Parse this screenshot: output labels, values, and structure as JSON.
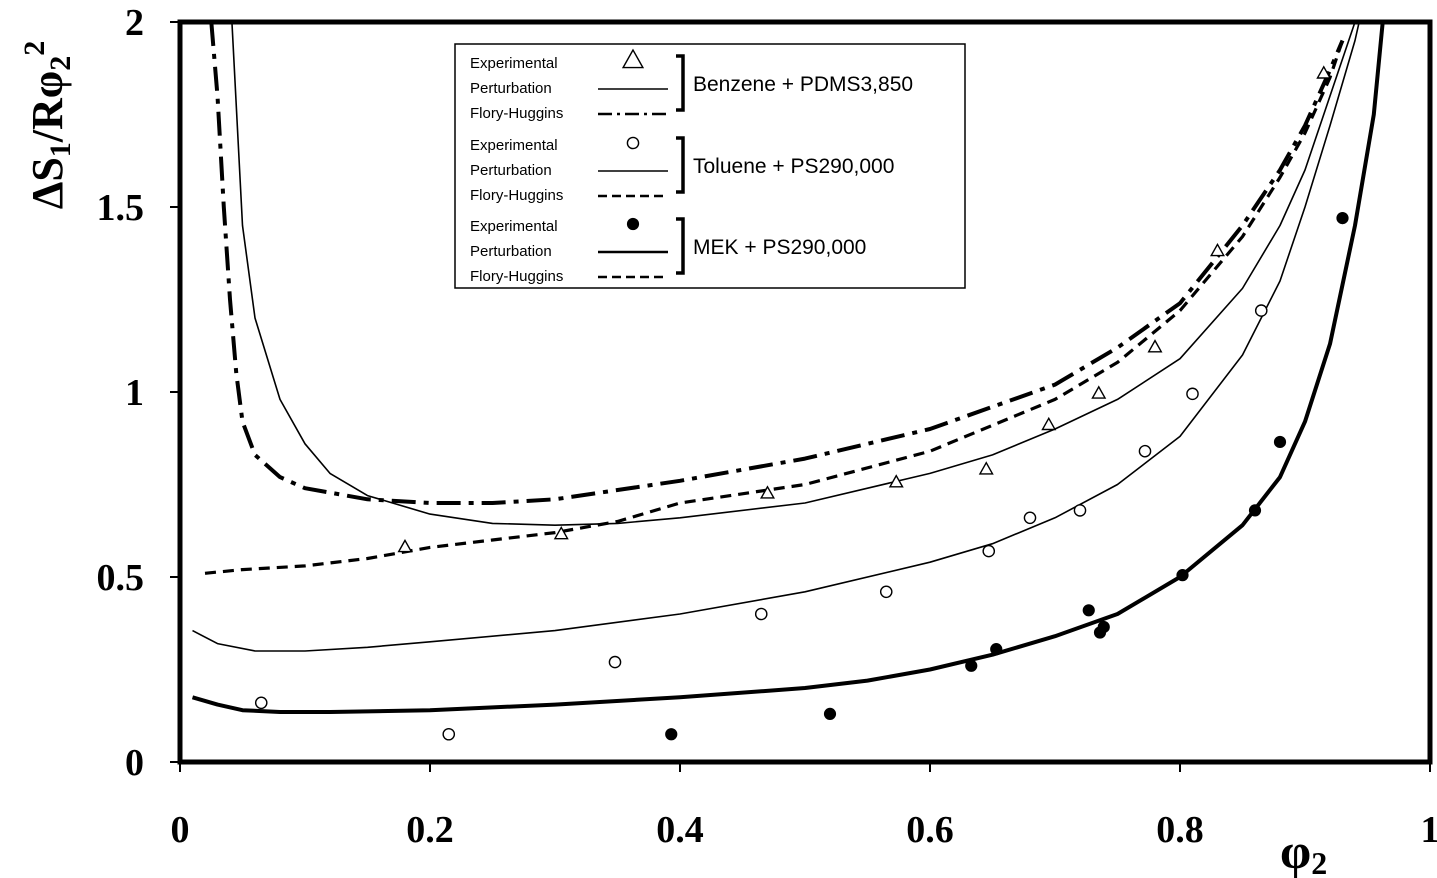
{
  "chart_data": {
    "type": "scatter",
    "ylabel": "ΔS1/Rφ2²",
    "ylabel_parts": {
      "delta": "Δ",
      "s": "S",
      "s_sub": "1",
      "slash": "/R",
      "phi": "φ",
      "phi_sub": "2",
      "phi_sup": "2"
    },
    "xlabel": "φ2",
    "xlabel_parts": {
      "phi": "φ",
      "sub": "2"
    },
    "xlim": [
      0,
      1
    ],
    "ylim": [
      0,
      2
    ],
    "xticks": [
      0,
      0.2,
      0.4,
      0.6,
      0.8,
      1
    ],
    "xtick_labels": [
      "0",
      "0.2",
      "0.4",
      "0.6",
      "0.8",
      "1"
    ],
    "yticks": [
      0,
      0.5,
      1,
      1.5,
      2
    ],
    "ytick_labels": [
      "0",
      "0.5",
      "1",
      "1.5",
      "2"
    ],
    "grid": false,
    "legend_position": "top-center",
    "legend": {
      "groups": [
        {
          "system": "Benzene + PDMS3,850",
          "entries": [
            {
              "label": "Experimental",
              "marker": "open-triangle"
            },
            {
              "label": "Perturbation",
              "line": "thin-solid"
            },
            {
              "label": "Flory-Huggins",
              "line": "dash-dot"
            }
          ]
        },
        {
          "system": "Toluene + PS290,000",
          "entries": [
            {
              "label": "Experimental",
              "marker": "open-circle"
            },
            {
              "label": "Perturbation",
              "line": "thin-solid"
            },
            {
              "label": "Flory-Huggins",
              "line": "dashed"
            }
          ]
        },
        {
          "system": "MEK + PS290,000",
          "entries": [
            {
              "label": "Experimental",
              "marker": "filled-circle"
            },
            {
              "label": "Perturbation",
              "line": "thick-solid"
            },
            {
              "label": "Flory-Huggins",
              "line": "dashed"
            }
          ]
        }
      ]
    },
    "series": [
      {
        "name": "Experimental",
        "group": "Benzene + PDMS3,850",
        "kind": "points",
        "marker": "open-triangle",
        "x": [
          0.18,
          0.305,
          0.47,
          0.573,
          0.645,
          0.695,
          0.735,
          0.78,
          0.83,
          0.915
        ],
        "y": [
          0.58,
          0.615,
          0.725,
          0.755,
          0.79,
          0.91,
          0.995,
          1.12,
          1.38,
          1.86
        ]
      },
      {
        "name": "Perturbation",
        "group": "Benzene + PDMS3,850",
        "kind": "line",
        "style": "thin-solid",
        "x": [
          0.04,
          0.05,
          0.06,
          0.08,
          0.1,
          0.12,
          0.15,
          0.2,
          0.25,
          0.3,
          0.35,
          0.4,
          0.5,
          0.6,
          0.65,
          0.7,
          0.75,
          0.8,
          0.85,
          0.88,
          0.9,
          0.92,
          0.94,
          0.955
        ],
        "y": [
          2.1,
          1.45,
          1.2,
          0.98,
          0.86,
          0.78,
          0.72,
          0.67,
          0.645,
          0.64,
          0.645,
          0.66,
          0.7,
          0.78,
          0.83,
          0.9,
          0.98,
          1.09,
          1.28,
          1.45,
          1.6,
          1.8,
          2.0,
          2.1
        ]
      },
      {
        "name": "Flory-Huggins",
        "group": "Benzene + PDMS3,850",
        "kind": "line",
        "style": "dash-dot",
        "x": [
          0.025,
          0.03,
          0.035,
          0.04,
          0.045,
          0.05,
          0.06,
          0.08,
          0.1,
          0.15,
          0.2,
          0.25,
          0.3,
          0.4,
          0.5,
          0.6,
          0.7,
          0.75,
          0.8,
          0.85,
          0.88,
          0.9,
          0.92,
          0.93
        ],
        "y": [
          2.0,
          1.8,
          1.5,
          1.25,
          1.05,
          0.92,
          0.83,
          0.77,
          0.74,
          0.71,
          0.7,
          0.7,
          0.71,
          0.76,
          0.82,
          0.9,
          1.02,
          1.12,
          1.24,
          1.45,
          1.6,
          1.72,
          1.87,
          1.95
        ]
      },
      {
        "name": "Experimental",
        "group": "Toluene + PS290,000",
        "kind": "points",
        "marker": "open-circle",
        "x": [
          0.065,
          0.215,
          0.348,
          0.465,
          0.565,
          0.647,
          0.68,
          0.72,
          0.772,
          0.81,
          0.865
        ],
        "y": [
          0.16,
          0.075,
          0.27,
          0.4,
          0.46,
          0.57,
          0.66,
          0.68,
          0.84,
          0.995,
          1.22
        ]
      },
      {
        "name": "Perturbation",
        "group": "Toluene + PS290,000",
        "kind": "line",
        "style": "thin-solid",
        "x": [
          0.01,
          0.03,
          0.06,
          0.1,
          0.15,
          0.2,
          0.3,
          0.4,
          0.5,
          0.6,
          0.65,
          0.7,
          0.75,
          0.8,
          0.85,
          0.88,
          0.9,
          0.92,
          0.94,
          0.95
        ],
        "y": [
          0.355,
          0.32,
          0.3,
          0.3,
          0.31,
          0.325,
          0.355,
          0.4,
          0.46,
          0.54,
          0.59,
          0.66,
          0.75,
          0.88,
          1.1,
          1.3,
          1.5,
          1.72,
          1.95,
          2.1
        ]
      },
      {
        "name": "Flory-Huggins",
        "group": "Toluene + PS290,000",
        "kind": "line",
        "style": "dashed",
        "x": [
          0.02,
          0.05,
          0.1,
          0.15,
          0.2,
          0.25,
          0.3,
          0.35,
          0.4,
          0.5,
          0.6,
          0.7,
          0.75,
          0.8,
          0.85,
          0.88,
          0.9,
          0.92,
          0.93
        ],
        "y": [
          0.51,
          0.52,
          0.53,
          0.55,
          0.58,
          0.6,
          0.62,
          0.65,
          0.7,
          0.75,
          0.84,
          0.98,
          1.08,
          1.22,
          1.42,
          1.58,
          1.7,
          1.85,
          1.95
        ]
      },
      {
        "name": "Experimental",
        "group": "MEK + PS290,000",
        "kind": "points",
        "marker": "filled-circle",
        "x": [
          0.393,
          0.52,
          0.633,
          0.653,
          0.727,
          0.736,
          0.739,
          0.802,
          0.86,
          0.88,
          0.93
        ],
        "y": [
          0.075,
          0.13,
          0.26,
          0.305,
          0.41,
          0.35,
          0.365,
          0.505,
          0.68,
          0.865,
          1.47
        ]
      },
      {
        "name": "Perturbation",
        "group": "MEK + PS290,000",
        "kind": "line",
        "style": "thick-solid",
        "x": [
          0.01,
          0.03,
          0.05,
          0.08,
          0.12,
          0.2,
          0.3,
          0.4,
          0.5,
          0.55,
          0.6,
          0.65,
          0.7,
          0.75,
          0.8,
          0.85,
          0.88,
          0.9,
          0.92,
          0.94,
          0.955,
          0.965
        ],
        "y": [
          0.175,
          0.155,
          0.14,
          0.135,
          0.135,
          0.14,
          0.155,
          0.175,
          0.2,
          0.22,
          0.25,
          0.29,
          0.34,
          0.4,
          0.5,
          0.64,
          0.77,
          0.92,
          1.13,
          1.45,
          1.75,
          2.1
        ]
      }
    ]
  }
}
